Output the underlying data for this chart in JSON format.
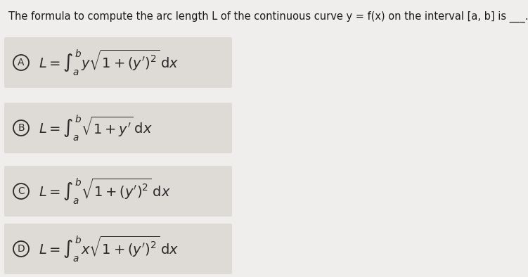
{
  "background_color": "#f0eeec",
  "header_text": "The formula to compute the arc length L of the continuous curve y = f(x) on the interval [a, b] is ___.",
  "header_fontsize": 10.5,
  "header_color": "#1a1a1a",
  "options": [
    {
      "label": "A",
      "formula": "$L = \\int_a^b y\\sqrt{1+(y')^2}\\,\\mathrm{d}x$"
    },
    {
      "label": "B",
      "formula": "$L = \\int_a^b \\sqrt{1+y'}\\,\\mathrm{d}x$"
    },
    {
      "label": "C",
      "formula": "$L = \\int_a^b \\sqrt{1+(y')^2}\\,\\mathrm{d}x$"
    },
    {
      "label": "D",
      "formula": "$L = \\int_a^b x\\sqrt{1+(y')^2}\\,\\mathrm{d}x$"
    }
  ],
  "option_fontsize": 14,
  "label_fontsize": 10,
  "text_color": "#2a2a2a",
  "option_box_color": "#dedad6",
  "circle_color": "#2a2a2a"
}
